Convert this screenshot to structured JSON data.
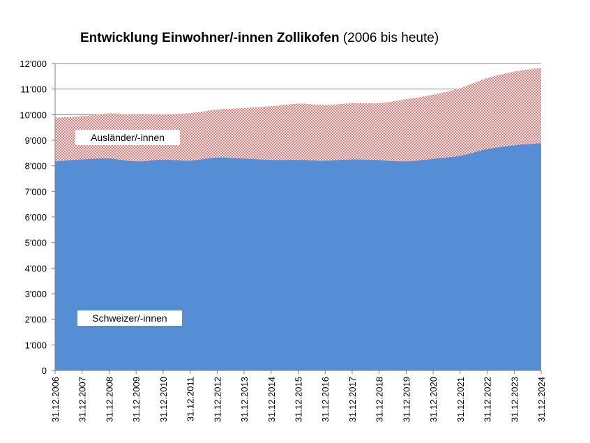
{
  "chart_data": {
    "type": "area",
    "title": "Entwicklung Einwohner/-innen Zollikofen",
    "subtitle": "(2006 bis heute)",
    "categories": [
      "31.12.2006",
      "31.12.2007",
      "31.12.2008",
      "31.12.2009",
      "31.12.2010",
      "31.12.2011",
      "31.12.2012",
      "31.12.2013",
      "31.12.2014",
      "31.12.2015",
      "31.12.2016",
      "31.12.2017",
      "31.12.2018",
      "31.12.2019",
      "31.12.2020",
      "31.12.2021",
      "31.12.2022",
      "31.12.2023",
      "31.12.2024"
    ],
    "series": [
      {
        "name": "Schweizer/-innen",
        "values": [
          8170,
          8250,
          8280,
          8170,
          8240,
          8200,
          8320,
          8280,
          8230,
          8230,
          8200,
          8250,
          8220,
          8170,
          8270,
          8390,
          8650,
          8800,
          8880
        ],
        "color": "#558ed5"
      },
      {
        "name": "Ausländer/-innen",
        "values": [
          1710,
          1690,
          1770,
          1830,
          1780,
          1860,
          1880,
          1980,
          2100,
          2200,
          2180,
          2200,
          2230,
          2440,
          2510,
          2650,
          2780,
          2880,
          2950
        ],
        "color": "#c0504d"
      }
    ],
    "stacked": true,
    "ylim": [
      0,
      12000
    ],
    "yticks": [
      0,
      1000,
      2000,
      3000,
      4000,
      5000,
      6000,
      7000,
      8000,
      9000,
      10000,
      11000,
      12000
    ],
    "ytick_labels": [
      "0",
      "1'000",
      "2'000",
      "3'000",
      "4'000",
      "5'000",
      "6'000",
      "7'000",
      "8'000",
      "9'000",
      "10'000",
      "11'000",
      "12'000"
    ],
    "grid": true
  }
}
